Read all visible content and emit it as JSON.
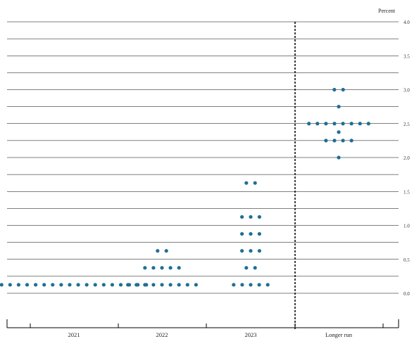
{
  "chart_data": {
    "type": "scatter",
    "title": "",
    "unit_label": "Percent",
    "ylim": [
      0,
      4.0
    ],
    "y_ticks": [
      "0.0",
      "0.5",
      "1.0",
      "1.5",
      "2.0",
      "2.5",
      "3.0",
      "3.5",
      "4.0"
    ],
    "y_grid_step": 0.25,
    "grid": true,
    "categories": [
      "2021",
      "2022",
      "2023",
      "Longer run"
    ],
    "dot_color": "#1f6f93",
    "points": [
      {
        "category": "2021",
        "y": 0.125,
        "count": 18
      },
      {
        "category": "2022",
        "y": 0.125,
        "count": 9
      },
      {
        "category": "2022",
        "y": 0.375,
        "count": 5
      },
      {
        "category": "2022",
        "y": 0.625,
        "count": 2
      },
      {
        "category": "2023",
        "y": 0.125,
        "count": 5
      },
      {
        "category": "2023",
        "y": 0.375,
        "count": 2
      },
      {
        "category": "2023",
        "y": 0.625,
        "count": 3
      },
      {
        "category": "2023",
        "y": 0.875,
        "count": 3
      },
      {
        "category": "2023",
        "y": 1.125,
        "count": 3
      },
      {
        "category": "2023",
        "y": 1.625,
        "count": 2
      },
      {
        "category": "Longer run",
        "y": 2.0,
        "count": 1
      },
      {
        "category": "Longer run",
        "y": 2.25,
        "count": 4
      },
      {
        "category": "Longer run",
        "y": 2.375,
        "count": 1
      },
      {
        "category": "Longer run",
        "y": 2.5,
        "count": 8
      },
      {
        "category": "Longer run",
        "y": 2.75,
        "count": 1
      },
      {
        "category": "Longer run",
        "y": 3.0,
        "count": 2
      }
    ]
  }
}
